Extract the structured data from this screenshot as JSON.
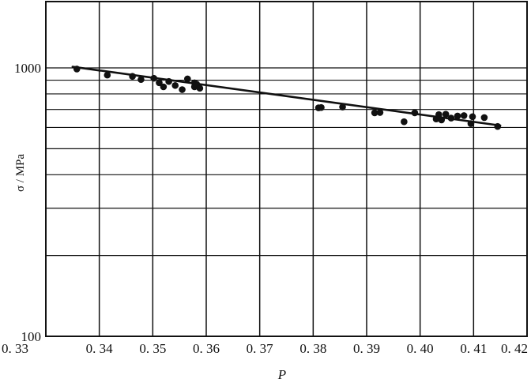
{
  "chart_data": {
    "type": "scatter",
    "title": "",
    "xlabel": "P",
    "ylabel": "σ / MPa",
    "y_scale": "log",
    "xlim": [
      0.33,
      0.42
    ],
    "ylim": [
      100,
      2000
    ],
    "grid": true,
    "legend": "none",
    "x_tick_values": [
      0.33,
      0.34,
      0.35,
      0.36,
      0.37,
      0.38,
      0.39,
      0.4,
      0.41,
      0.42
    ],
    "x_tick_labels": [
      "0. 33",
      "0. 34",
      "0. 35",
      "0. 36",
      "0. 37",
      "0. 38",
      "0. 39",
      "0. 40",
      "0. 41",
      "0. 42"
    ],
    "y_tick_values": [
      100,
      1000
    ],
    "y_tick_labels": [
      "100",
      "1000"
    ],
    "y_grid_values": [
      200,
      300,
      400,
      500,
      600,
      700,
      800,
      900,
      1000
    ],
    "points": {
      "x": [
        0.3358,
        0.3415,
        0.3462,
        0.3478,
        0.3502,
        0.3512,
        0.352,
        0.353,
        0.3542,
        0.3555,
        0.3565,
        0.3578,
        0.3578,
        0.3582,
        0.3588,
        0.381,
        0.3815,
        0.3855,
        0.3915,
        0.3925,
        0.397,
        0.399,
        0.403,
        0.4035,
        0.404,
        0.4048,
        0.4058,
        0.407,
        0.4082,
        0.4095,
        0.4098,
        0.412,
        0.4145
      ],
      "y": [
        990,
        940,
        930,
        905,
        915,
        880,
        850,
        890,
        860,
        830,
        910,
        880,
        850,
        870,
        840,
        710,
        712,
        715,
        680,
        682,
        630,
        680,
        645,
        670,
        640,
        672,
        650,
        662,
        664,
        620,
        658,
        653,
        605
      ]
    },
    "fit_line": {
      "x": [
        0.335,
        0.415
      ],
      "y": [
        1010,
        610
      ]
    },
    "colors": {
      "points": "#111111",
      "line": "#111111",
      "grid": "#111111",
      "background": "#ffffff"
    }
  }
}
